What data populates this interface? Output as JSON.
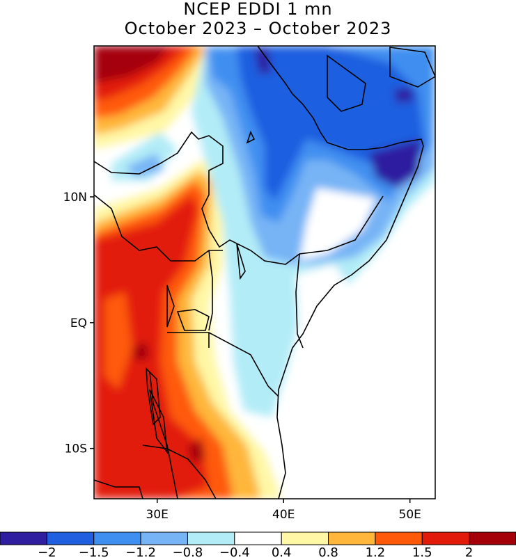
{
  "title": {
    "line1": "NCEP EDDI 1 mn",
    "line2": "October 2023 – October 2023"
  },
  "map": {
    "lon_range": [
      25,
      52
    ],
    "lat_range": [
      -14,
      22
    ],
    "lat_ticks": [
      {
        "value": 10,
        "label": "10N"
      },
      {
        "value": 0,
        "label": "EQ"
      },
      {
        "value": -10,
        "label": "10S"
      }
    ],
    "lon_ticks": [
      {
        "value": 30,
        "label": "30E"
      },
      {
        "value": 40,
        "label": "40E"
      },
      {
        "value": 50,
        "label": "50E"
      }
    ]
  },
  "legend": {
    "colors": [
      "#2f1fa0",
      "#1f5fe0",
      "#3f8ff0",
      "#77b4f5",
      "#b2ecf7",
      "#ffffff",
      "#fff7a6",
      "#ffb63b",
      "#ff5a0a",
      "#e21a0a",
      "#a5000a"
    ],
    "labels": [
      "−2",
      "−1.5",
      "−1.2",
      "−0.8",
      "−0.4",
      "0.4",
      "0.8",
      "1.2",
      "1.5",
      "2"
    ]
  }
}
